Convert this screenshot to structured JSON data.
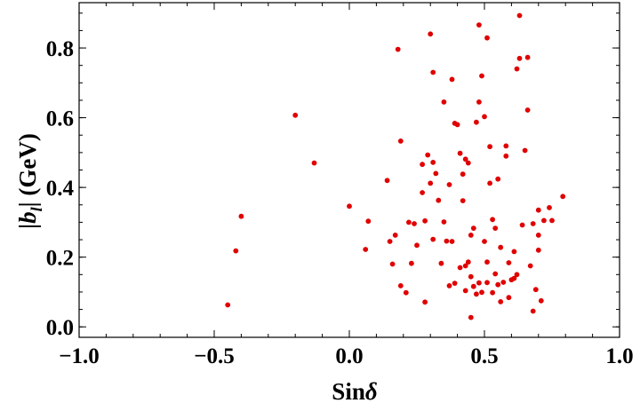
{
  "chart_data": {
    "type": "scatter",
    "title": "",
    "xlabel": {
      "prefix": "Sin",
      "symbol": "δ"
    },
    "ylabel": {
      "open": "|",
      "symbol": "b",
      "sub": "l",
      "close": "|",
      "rest": " (GeV)"
    },
    "xlim": [
      -1.0,
      1.0
    ],
    "ylim": [
      -0.03,
      0.93
    ],
    "xticks": [
      {
        "value": -1.0,
        "label": "−1.0"
      },
      {
        "value": -0.5,
        "label": "−0.5"
      },
      {
        "value": 0.0,
        "label": "0.0"
      },
      {
        "value": 0.5,
        "label": "0.5"
      },
      {
        "value": 1.0,
        "label": "1.0"
      }
    ],
    "yticks": [
      {
        "value": 0.0,
        "label": "0.0"
      },
      {
        "value": 0.2,
        "label": "0.2"
      },
      {
        "value": 0.4,
        "label": "0.4"
      },
      {
        "value": 0.6,
        "label": "0.6"
      },
      {
        "value": 0.8,
        "label": "0.8"
      }
    ],
    "grid": false,
    "marker_color": "#e00000",
    "series": [
      {
        "points": [
          [
            -0.45,
            0.063
          ],
          [
            -0.42,
            0.218
          ],
          [
            -0.4,
            0.317
          ],
          [
            -0.2,
            0.607
          ],
          [
            -0.13,
            0.47
          ],
          [
            0.0,
            0.346
          ],
          [
            0.06,
            0.222
          ],
          [
            0.07,
            0.303
          ],
          [
            0.14,
            0.42
          ],
          [
            0.15,
            0.245
          ],
          [
            0.16,
            0.18
          ],
          [
            0.17,
            0.263
          ],
          [
            0.18,
            0.796
          ],
          [
            0.19,
            0.533
          ],
          [
            0.19,
            0.118
          ],
          [
            0.21,
            0.098
          ],
          [
            0.22,
            0.3
          ],
          [
            0.23,
            0.182
          ],
          [
            0.24,
            0.296
          ],
          [
            0.25,
            0.234
          ],
          [
            0.27,
            0.466
          ],
          [
            0.27,
            0.385
          ],
          [
            0.28,
            0.304
          ],
          [
            0.28,
            0.071
          ],
          [
            0.29,
            0.493
          ],
          [
            0.3,
            0.84
          ],
          [
            0.3,
            0.412
          ],
          [
            0.31,
            0.472
          ],
          [
            0.31,
            0.73
          ],
          [
            0.31,
            0.251
          ],
          [
            0.32,
            0.44
          ],
          [
            0.33,
            0.363
          ],
          [
            0.34,
            0.182
          ],
          [
            0.35,
            0.645
          ],
          [
            0.35,
            0.301
          ],
          [
            0.36,
            0.246
          ],
          [
            0.37,
            0.408
          ],
          [
            0.37,
            0.118
          ],
          [
            0.38,
            0.71
          ],
          [
            0.38,
            0.245
          ],
          [
            0.39,
            0.584
          ],
          [
            0.39,
            0.125
          ],
          [
            0.4,
            0.58
          ],
          [
            0.41,
            0.498
          ],
          [
            0.41,
            0.17
          ],
          [
            0.42,
            0.438
          ],
          [
            0.42,
            0.362
          ],
          [
            0.43,
            0.104
          ],
          [
            0.43,
            0.481
          ],
          [
            0.43,
            0.175
          ],
          [
            0.44,
            0.47
          ],
          [
            0.44,
            0.186
          ],
          [
            0.45,
            0.027
          ],
          [
            0.45,
            0.263
          ],
          [
            0.45,
            0.144
          ],
          [
            0.46,
            0.283
          ],
          [
            0.46,
            0.116
          ],
          [
            0.47,
            0.587
          ],
          [
            0.47,
            0.094
          ],
          [
            0.48,
            0.866
          ],
          [
            0.48,
            0.645
          ],
          [
            0.48,
            0.126
          ],
          [
            0.49,
            0.72
          ],
          [
            0.49,
            0.099
          ],
          [
            0.5,
            0.603
          ],
          [
            0.5,
            0.245
          ],
          [
            0.51,
            0.186
          ],
          [
            0.51,
            0.829
          ],
          [
            0.51,
            0.127
          ],
          [
            0.52,
            0.517
          ],
          [
            0.52,
            0.412
          ],
          [
            0.53,
            0.098
          ],
          [
            0.53,
            0.308
          ],
          [
            0.54,
            0.283
          ],
          [
            0.54,
            0.152
          ],
          [
            0.55,
            0.424
          ],
          [
            0.55,
            0.121
          ],
          [
            0.56,
            0.072
          ],
          [
            0.56,
            0.228
          ],
          [
            0.57,
            0.128
          ],
          [
            0.58,
            0.49
          ],
          [
            0.58,
            0.519
          ],
          [
            0.59,
            0.084
          ],
          [
            0.59,
            0.184
          ],
          [
            0.6,
            0.135
          ],
          [
            0.61,
            0.216
          ],
          [
            0.61,
            0.139
          ],
          [
            0.62,
            0.74
          ],
          [
            0.62,
            0.15
          ],
          [
            0.63,
            0.893
          ],
          [
            0.63,
            0.77
          ],
          [
            0.64,
            0.292
          ],
          [
            0.65,
            0.506
          ],
          [
            0.66,
            0.773
          ],
          [
            0.66,
            0.622
          ],
          [
            0.67,
            0.175
          ],
          [
            0.68,
            0.045
          ],
          [
            0.68,
            0.296
          ],
          [
            0.69,
            0.107
          ],
          [
            0.7,
            0.335
          ],
          [
            0.7,
            0.263
          ],
          [
            0.7,
            0.22
          ],
          [
            0.71,
            0.075
          ],
          [
            0.72,
            0.305
          ],
          [
            0.74,
            0.342
          ],
          [
            0.75,
            0.305
          ],
          [
            0.79,
            0.374
          ]
        ]
      }
    ]
  }
}
